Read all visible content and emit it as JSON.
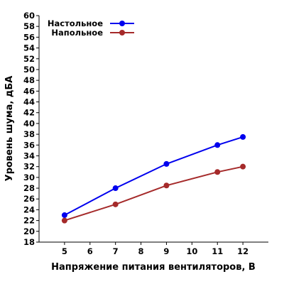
{
  "chart_data": {
    "type": "line",
    "xlabel": "Напряжение питания вентиляторов, В",
    "ylabel": "Уровень шума, дБА",
    "xlim": [
      4,
      13
    ],
    "ylim": [
      18,
      60
    ],
    "x_ticks": [
      5,
      6,
      7,
      8,
      9,
      10,
      11,
      12
    ],
    "y_ticks": [
      18,
      20,
      22,
      24,
      26,
      28,
      30,
      32,
      34,
      36,
      38,
      40,
      42,
      44,
      46,
      48,
      50,
      52,
      54,
      56,
      58,
      60
    ],
    "grid": false,
    "legend_position": "top-left",
    "series": [
      {
        "name": "Настольное",
        "color": "#0000ee",
        "x": [
          5,
          7,
          9,
          11,
          12
        ],
        "y": [
          23,
          28,
          32.5,
          36,
          37.5
        ]
      },
      {
        "name": "Напольное",
        "color": "#a52a2a",
        "x": [
          5,
          7,
          9,
          11,
          12
        ],
        "y": [
          22,
          25,
          28.5,
          31,
          32
        ]
      }
    ]
  }
}
